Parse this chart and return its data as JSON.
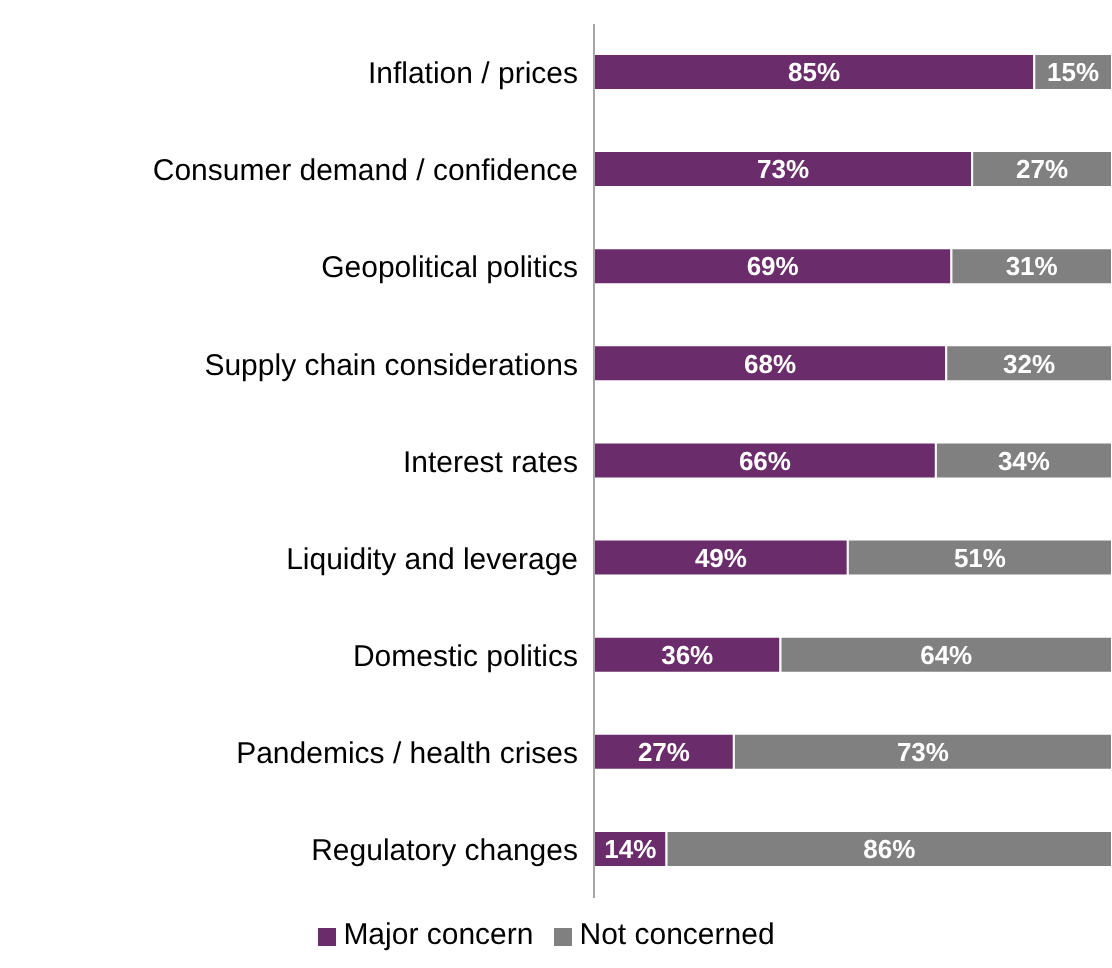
{
  "chart_data": {
    "type": "bar",
    "orientation": "horizontal",
    "stacked": true,
    "legend": "bottom",
    "categories": [
      "Inflation / prices",
      "Consumer demand / confidence",
      "Geopolitical politics",
      "Supply chain considerations",
      "Interest rates",
      "Liquidity and leverage",
      "Domestic politics",
      "Pandemics / health crises",
      "Regulatory changes"
    ],
    "series": [
      {
        "name": "Major concern",
        "color": "#6b2c6b",
        "values": [
          85,
          73,
          69,
          68,
          66,
          49,
          36,
          27,
          14
        ],
        "value_labels": [
          "85%",
          "73%",
          "69%",
          "68%",
          "66%",
          "49%",
          "36%",
          "27%",
          "14%"
        ]
      },
      {
        "name": "Not concerned",
        "color": "#808080",
        "values": [
          15,
          27,
          31,
          32,
          34,
          51,
          64,
          73,
          86
        ],
        "value_labels": [
          "15%",
          "27%",
          "31%",
          "32%",
          "34%",
          "51%",
          "64%",
          "73%",
          "86%"
        ]
      }
    ]
  }
}
